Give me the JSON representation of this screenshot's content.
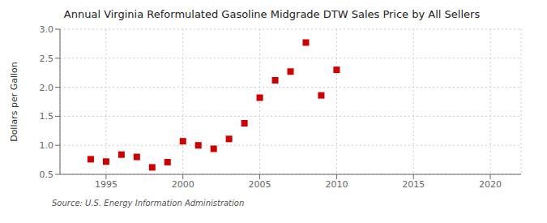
{
  "chart_data": {
    "type": "scatter",
    "title": "Annual Virginia Reformulated Gasoline Midgrade DTW Sales Price by All Sellers",
    "ylabel": "Dollars per Gallon",
    "annotations": [
      "Source: U.S. Energy Information Administration"
    ],
    "x": [
      1994,
      1995,
      1996,
      1997,
      1998,
      1999,
      2000,
      2001,
      2002,
      2003,
      2004,
      2005,
      2006,
      2007,
      2008,
      2009,
      2010
    ],
    "values": [
      0.76,
      0.72,
      0.84,
      0.8,
      0.62,
      0.71,
      1.07,
      1.0,
      0.94,
      1.11,
      1.38,
      1.82,
      2.12,
      2.27,
      2.77,
      1.86,
      2.3
    ],
    "xlim": [
      1992,
      2022
    ],
    "ylim": [
      0.5,
      3.0
    ],
    "xticks": [
      1995,
      2000,
      2005,
      2010,
      2015,
      2020
    ],
    "yticks": [
      0.5,
      {
        "value": 1.0,
        "label": "1.0"
      },
      1.5,
      {
        "value": 2.0,
        "label": "2.0"
      },
      2.5,
      {
        "value": 3.0,
        "label": "3.0"
      }
    ],
    "color": "#cc0000",
    "marker": "square",
    "grid": true
  }
}
